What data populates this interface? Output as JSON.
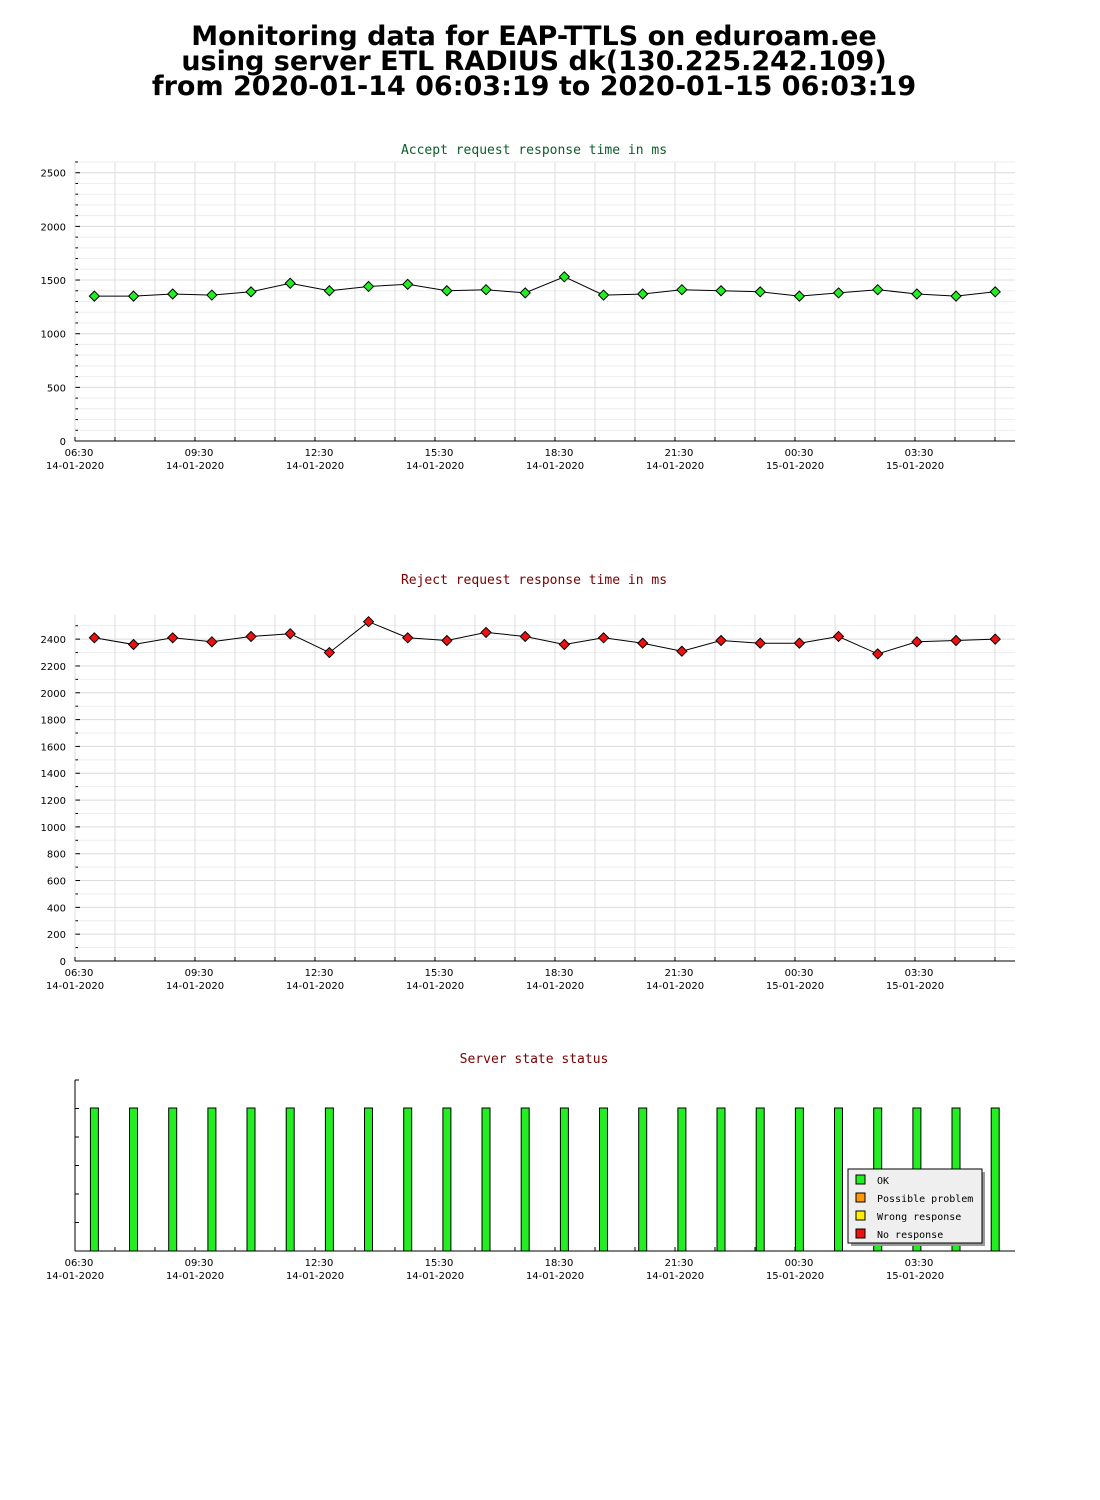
{
  "header": {
    "line1": "Monitoring data for EAP-TTLS on eduroam.ee",
    "line2": "using server ETL RADIUS dk(130.225.242.109)",
    "line3": "from 2020-01-14 06:03:19 to 2020-01-15 06:03:19"
  },
  "colors": {
    "accept_title": "#0b5e2a",
    "reject_title": "#7a0000",
    "status_title": "#7a0000",
    "accept_point": "#22ee22",
    "reject_point": "#ee1111",
    "ok": "#22ee22",
    "possible_problem": "#ff9900",
    "wrong_response": "#ffee00",
    "no_response": "#ee1111"
  },
  "x_ticks": [
    {
      "time": "06:30",
      "date": "14-01-2020"
    },
    {
      "time": "09:30",
      "date": "14-01-2020"
    },
    {
      "time": "12:30",
      "date": "14-01-2020"
    },
    {
      "time": "15:30",
      "date": "14-01-2020"
    },
    {
      "time": "18:30",
      "date": "14-01-2020"
    },
    {
      "time": "21:30",
      "date": "14-01-2020"
    },
    {
      "time": "00:30",
      "date": "15-01-2020"
    },
    {
      "time": "03:30",
      "date": "15-01-2020"
    }
  ],
  "chart_data": [
    {
      "type": "line",
      "title": "Accept request response time in ms",
      "xlabel": "",
      "ylabel": "",
      "x": [
        "2020-01-14 06:33",
        "2020-01-14 07:33",
        "2020-01-14 08:33",
        "2020-01-14 09:33",
        "2020-01-14 10:33",
        "2020-01-14 11:33",
        "2020-01-14 12:33",
        "2020-01-14 13:33",
        "2020-01-14 14:33",
        "2020-01-14 15:33",
        "2020-01-14 16:33",
        "2020-01-14 17:33",
        "2020-01-14 18:33",
        "2020-01-14 19:33",
        "2020-01-14 20:33",
        "2020-01-14 21:33",
        "2020-01-14 22:33",
        "2020-01-14 23:33",
        "2020-01-15 00:33",
        "2020-01-15 01:33",
        "2020-01-15 02:33",
        "2020-01-15 03:33",
        "2020-01-15 04:33",
        "2020-01-15 05:33"
      ],
      "values": [
        1350,
        1350,
        1370,
        1360,
        1390,
        1470,
        1400,
        1440,
        1460,
        1400,
        1410,
        1380,
        1530,
        1360,
        1370,
        1410,
        1400,
        1390,
        1350,
        1380,
        1410,
        1370,
        1350,
        1390
      ],
      "ylim": [
        0,
        2600
      ],
      "yticks": [
        "0",
        "500",
        "1000",
        "1500",
        "2000",
        "2500"
      ],
      "grid": true
    },
    {
      "type": "line",
      "title": "Reject request response time in ms",
      "xlabel": "",
      "ylabel": "",
      "x": [
        "2020-01-14 06:33",
        "2020-01-14 07:33",
        "2020-01-14 08:33",
        "2020-01-14 09:33",
        "2020-01-14 10:33",
        "2020-01-14 11:33",
        "2020-01-14 12:33",
        "2020-01-14 13:33",
        "2020-01-14 14:33",
        "2020-01-14 15:33",
        "2020-01-14 16:33",
        "2020-01-14 17:33",
        "2020-01-14 18:33",
        "2020-01-14 19:33",
        "2020-01-14 20:33",
        "2020-01-14 21:33",
        "2020-01-14 22:33",
        "2020-01-14 23:33",
        "2020-01-15 00:33",
        "2020-01-15 01:33",
        "2020-01-15 02:33",
        "2020-01-15 03:33",
        "2020-01-15 04:33",
        "2020-01-15 05:33"
      ],
      "values": [
        2410,
        2360,
        2410,
        2380,
        2420,
        2440,
        2300,
        2530,
        2410,
        2390,
        2450,
        2420,
        2360,
        2410,
        2370,
        2310,
        2390,
        2370,
        2370,
        2420,
        2290,
        2380,
        2390,
        2400
      ],
      "ylim": [
        0,
        2580
      ],
      "yticks": [
        "0",
        "200",
        "400",
        "600",
        "800",
        "1000",
        "1200",
        "1400",
        "1600",
        "1800",
        "2000",
        "2200",
        "2400"
      ],
      "grid": true
    },
    {
      "type": "bar",
      "title": "Server state status",
      "x": [
        "2020-01-14 06:33",
        "2020-01-14 07:33",
        "2020-01-14 08:33",
        "2020-01-14 09:33",
        "2020-01-14 10:33",
        "2020-01-14 11:33",
        "2020-01-14 12:33",
        "2020-01-14 13:33",
        "2020-01-14 14:33",
        "2020-01-14 15:33",
        "2020-01-14 16:33",
        "2020-01-14 17:33",
        "2020-01-14 18:33",
        "2020-01-14 19:33",
        "2020-01-14 20:33",
        "2020-01-14 21:33",
        "2020-01-14 22:33",
        "2020-01-14 23:33",
        "2020-01-15 00:33",
        "2020-01-15 01:33",
        "2020-01-15 02:33",
        "2020-01-15 03:33",
        "2020-01-15 04:33",
        "2020-01-15 05:33"
      ],
      "states": [
        "OK",
        "OK",
        "OK",
        "OK",
        "OK",
        "OK",
        "OK",
        "OK",
        "OK",
        "OK",
        "OK",
        "OK",
        "OK",
        "OK",
        "OK",
        "OK",
        "OK",
        "OK",
        "OK",
        "OK",
        "OK",
        "OK",
        "OK",
        "OK"
      ],
      "legend": [
        "OK",
        "Possible problem",
        "Wrong response",
        "No response"
      ],
      "legend_position": "bottom-right",
      "grid": false
    }
  ]
}
